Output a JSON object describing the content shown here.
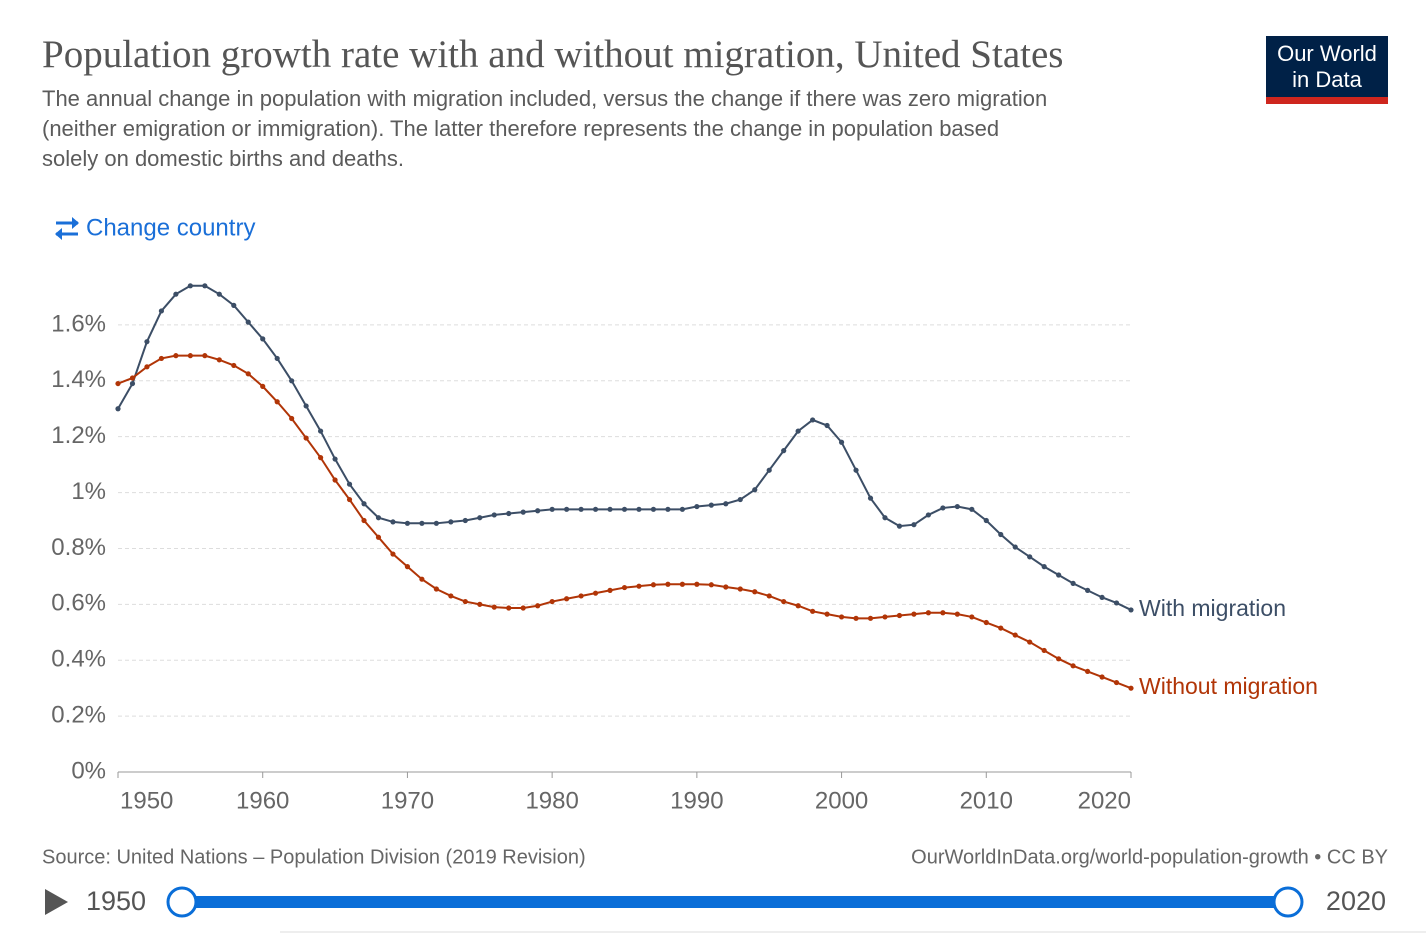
{
  "chart_data": {
    "type": "line",
    "title": "Population growth rate with and without migration, United States",
    "subtitle": [
      "The annual change in population with migration included, versus the change if there was zero migration",
      "(neither emigration or immigration). The latter therefore represents the change in population based",
      "solely on domestic births and deaths."
    ],
    "change_country": "Change country",
    "logo": [
      "Our World",
      "in Data"
    ],
    "source": "Source: United Nations – Population Division (2019 Revision)",
    "url": "OurWorldInData.org/world-population-growth • CC BY",
    "timeline": {
      "start": 1950,
      "end": 2020
    },
    "x": [
      1950,
      1951,
      1952,
      1953,
      1954,
      1955,
      1956,
      1957,
      1958,
      1959,
      1960,
      1961,
      1962,
      1963,
      1964,
      1965,
      1966,
      1967,
      1968,
      1969,
      1970,
      1971,
      1972,
      1973,
      1974,
      1975,
      1976,
      1977,
      1978,
      1979,
      1980,
      1981,
      1982,
      1983,
      1984,
      1985,
      1986,
      1987,
      1988,
      1989,
      1990,
      1991,
      1992,
      1993,
      1994,
      1995,
      1996,
      1997,
      1998,
      1999,
      2000,
      2001,
      2002,
      2003,
      2004,
      2005,
      2006,
      2007,
      2008,
      2009,
      2010,
      2011,
      2012,
      2013,
      2014,
      2015,
      2016,
      2017,
      2018,
      2019,
      2020
    ],
    "series": [
      {
        "name": "With migration",
        "color": "#3c4e66",
        "values": [
          1.3,
          1.39,
          1.54,
          1.65,
          1.71,
          1.74,
          1.74,
          1.71,
          1.67,
          1.61,
          1.55,
          1.48,
          1.4,
          1.31,
          1.22,
          1.12,
          1.03,
          0.96,
          0.91,
          0.895,
          0.89,
          0.89,
          0.89,
          0.895,
          0.9,
          0.91,
          0.92,
          0.925,
          0.93,
          0.935,
          0.94,
          0.94,
          0.94,
          0.94,
          0.94,
          0.94,
          0.94,
          0.94,
          0.94,
          0.94,
          0.95,
          0.955,
          0.96,
          0.975,
          1.01,
          1.08,
          1.15,
          1.22,
          1.26,
          1.24,
          1.18,
          1.08,
          0.98,
          0.91,
          0.88,
          0.885,
          0.92,
          0.945,
          0.95,
          0.94,
          0.9,
          0.85,
          0.805,
          0.77,
          0.735,
          0.705,
          0.675,
          0.65,
          0.625,
          0.605,
          0.58
        ]
      },
      {
        "name": "Without migration",
        "color": "#b13507",
        "values": [
          1.39,
          1.41,
          1.45,
          1.48,
          1.49,
          1.49,
          1.49,
          1.475,
          1.455,
          1.425,
          1.38,
          1.325,
          1.265,
          1.195,
          1.125,
          1.045,
          0.975,
          0.9,
          0.84,
          0.78,
          0.735,
          0.69,
          0.655,
          0.63,
          0.61,
          0.6,
          0.59,
          0.587,
          0.587,
          0.595,
          0.61,
          0.62,
          0.63,
          0.64,
          0.65,
          0.66,
          0.665,
          0.67,
          0.672,
          0.672,
          0.672,
          0.67,
          0.662,
          0.655,
          0.645,
          0.63,
          0.61,
          0.595,
          0.575,
          0.565,
          0.555,
          0.55,
          0.55,
          0.555,
          0.56,
          0.565,
          0.57,
          0.57,
          0.565,
          0.555,
          0.535,
          0.515,
          0.49,
          0.465,
          0.435,
          0.405,
          0.38,
          0.36,
          0.34,
          0.32,
          0.3
        ]
      }
    ],
    "xlim": [
      1950,
      2020
    ],
    "xticks": [
      1950,
      1960,
      1970,
      1980,
      1990,
      2000,
      2010,
      2020
    ],
    "ylim": [
      0,
      1.75
    ],
    "yticks": [
      {
        "value": 0,
        "label": "0%"
      },
      {
        "value": 0.2,
        "label": "0.2%"
      },
      {
        "value": 0.4,
        "label": "0.4%"
      },
      {
        "value": 0.6,
        "label": "0.6%"
      },
      {
        "value": 0.8,
        "label": "0.8%"
      },
      {
        "value": 1,
        "label": "1%"
      },
      {
        "value": 1.2,
        "label": "1.2%"
      },
      {
        "value": 1.4,
        "label": "1.4%"
      },
      {
        "value": 1.6,
        "label": "1.6%"
      }
    ],
    "grid": true
  }
}
